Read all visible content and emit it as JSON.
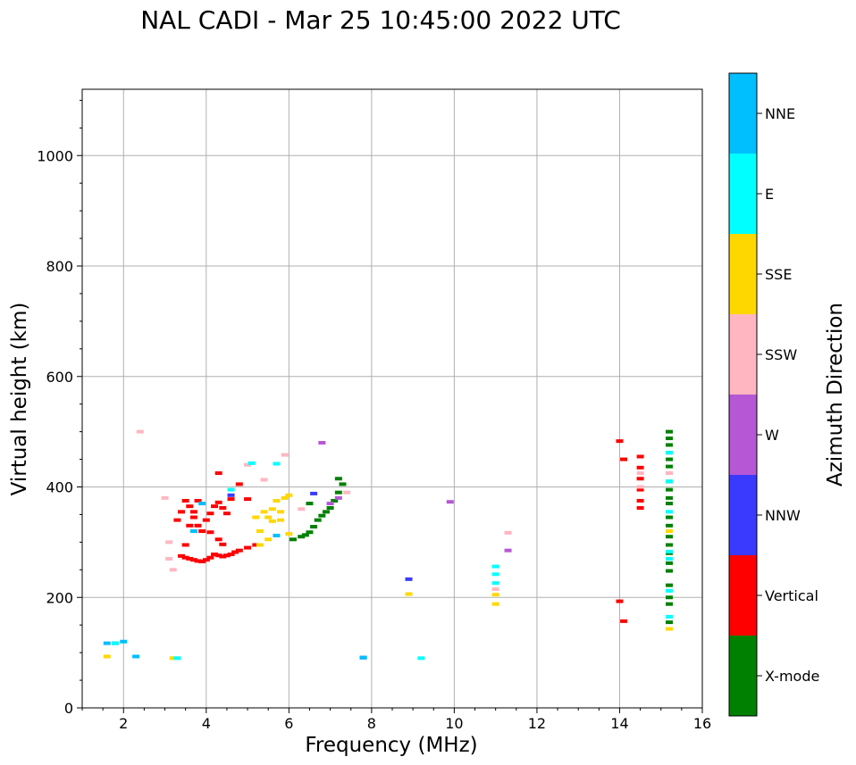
{
  "chart_data": {
    "type": "scatter",
    "title": "NAL CADI - Mar 25 10:45:00 2022 UTC",
    "xlabel": "Frequency (MHz)",
    "ylabel": "Virtual height (km)",
    "xlim": [
      1,
      16
    ],
    "ylim": [
      0,
      1120
    ],
    "xticks": [
      2,
      4,
      6,
      8,
      10,
      12,
      14,
      16
    ],
    "yticks": [
      0,
      200,
      400,
      600,
      800,
      1000
    ],
    "grid": true,
    "colorbar": {
      "label": "Azimuth Direction",
      "categories": [
        {
          "name": "X-mode",
          "color": "#008000"
        },
        {
          "name": "Vertical",
          "color": "#ff0000"
        },
        {
          "name": "NNW",
          "color": "#3a3aff"
        },
        {
          "name": "W",
          "color": "#b657d6"
        },
        {
          "name": "SSW",
          "color": "#ffb6c1"
        },
        {
          "name": "SSE",
          "color": "#ffd700"
        },
        {
          "name": "E",
          "color": "#00ffff"
        },
        {
          "name": "NNE",
          "color": "#00bfff"
        }
      ]
    },
    "series": [
      {
        "name": "X-mode",
        "color": "#008000",
        "points": [
          [
            6.1,
            305
          ],
          [
            6.3,
            310
          ],
          [
            6.4,
            313
          ],
          [
            6.5,
            318
          ],
          [
            6.6,
            328
          ],
          [
            6.7,
            340
          ],
          [
            6.8,
            348
          ],
          [
            6.9,
            355
          ],
          [
            7.0,
            362
          ],
          [
            7.1,
            375
          ],
          [
            7.2,
            390
          ],
          [
            7.3,
            405
          ],
          [
            7.2,
            415
          ],
          [
            6.5,
            370
          ],
          [
            15.2,
            500
          ],
          [
            15.2,
            488
          ],
          [
            15.2,
            476
          ],
          [
            15.2,
            462
          ],
          [
            15.2,
            450
          ],
          [
            15.2,
            437
          ],
          [
            15.2,
            425
          ],
          [
            15.2,
            410
          ],
          [
            15.2,
            395
          ],
          [
            15.2,
            380
          ],
          [
            15.2,
            370
          ],
          [
            15.2,
            345
          ],
          [
            15.2,
            330
          ],
          [
            15.2,
            310
          ],
          [
            15.2,
            295
          ],
          [
            15.2,
            280
          ],
          [
            15.2,
            262
          ],
          [
            15.2,
            248
          ],
          [
            15.2,
            222
          ],
          [
            15.2,
            200
          ],
          [
            15.2,
            188
          ],
          [
            15.2,
            155
          ]
        ]
      },
      {
        "name": "Vertical",
        "color": "#ff0000",
        "points": [
          [
            3.3,
            340
          ],
          [
            3.4,
            355
          ],
          [
            3.5,
            375
          ],
          [
            3.6,
            365
          ],
          [
            3.7,
            345
          ],
          [
            3.8,
            330
          ],
          [
            3.9,
            320
          ],
          [
            3.6,
            330
          ],
          [
            3.7,
            355
          ],
          [
            3.8,
            375
          ],
          [
            4.0,
            340
          ],
          [
            4.1,
            352
          ],
          [
            4.2,
            365
          ],
          [
            4.3,
            372
          ],
          [
            4.4,
            362
          ],
          [
            4.5,
            352
          ],
          [
            4.6,
            378
          ],
          [
            4.8,
            405
          ],
          [
            5.0,
            378
          ],
          [
            4.3,
            425
          ],
          [
            3.4,
            275
          ],
          [
            3.5,
            272
          ],
          [
            3.6,
            270
          ],
          [
            3.7,
            268
          ],
          [
            3.8,
            266
          ],
          [
            3.9,
            265
          ],
          [
            4.0,
            268
          ],
          [
            4.1,
            272
          ],
          [
            4.2,
            278
          ],
          [
            4.3,
            276
          ],
          [
            4.4,
            274
          ],
          [
            4.5,
            276
          ],
          [
            4.6,
            278
          ],
          [
            4.7,
            282
          ],
          [
            4.8,
            285
          ],
          [
            5.0,
            290
          ],
          [
            5.2,
            295
          ],
          [
            3.5,
            295
          ],
          [
            4.4,
            296
          ],
          [
            4.3,
            305
          ],
          [
            4.1,
            318
          ],
          [
            14.0,
            483
          ],
          [
            14.1,
            450
          ],
          [
            14.0,
            193
          ],
          [
            14.1,
            157
          ],
          [
            14.5,
            455
          ],
          [
            14.5,
            435
          ],
          [
            14.5,
            415
          ],
          [
            14.5,
            395
          ],
          [
            14.5,
            375
          ],
          [
            14.5,
            362
          ]
        ]
      },
      {
        "name": "NNW",
        "color": "#3a3aff",
        "points": [
          [
            4.6,
            385
          ],
          [
            6.6,
            388
          ],
          [
            8.9,
            233
          ],
          [
            7.8,
            91
          ],
          [
            1.8,
            117
          ]
        ]
      },
      {
        "name": "W",
        "color": "#b657d6",
        "points": [
          [
            6.8,
            480
          ],
          [
            7.0,
            370
          ],
          [
            7.2,
            380
          ],
          [
            9.9,
            373
          ],
          [
            11.3,
            285
          ]
        ]
      },
      {
        "name": "SSW",
        "color": "#ffb6c1",
        "points": [
          [
            2.4,
            500
          ],
          [
            3.0,
            380
          ],
          [
            3.1,
            300
          ],
          [
            3.1,
            270
          ],
          [
            3.2,
            250
          ],
          [
            5.0,
            440
          ],
          [
            5.4,
            413
          ],
          [
            5.9,
            458
          ],
          [
            6.3,
            360
          ],
          [
            7.4,
            390
          ],
          [
            11.0,
            215
          ],
          [
            11.3,
            317
          ],
          [
            14.5,
            425
          ],
          [
            14.5,
            400
          ],
          [
            15.2,
            425
          ]
        ]
      },
      {
        "name": "SSE",
        "color": "#ffd700",
        "points": [
          [
            5.2,
            345
          ],
          [
            5.4,
            355
          ],
          [
            5.5,
            345
          ],
          [
            5.6,
            360
          ],
          [
            5.7,
            375
          ],
          [
            5.8,
            355
          ],
          [
            5.9,
            380
          ],
          [
            6.0,
            385
          ],
          [
            5.3,
            320
          ],
          [
            5.6,
            338
          ],
          [
            5.8,
            340
          ],
          [
            5.3,
            295
          ],
          [
            5.5,
            305
          ],
          [
            6.0,
            315
          ],
          [
            8.9,
            206
          ],
          [
            11.0,
            188
          ],
          [
            11.0,
            205
          ],
          [
            15.2,
            320
          ],
          [
            15.2,
            143
          ],
          [
            1.6,
            93
          ],
          [
            3.2,
            90
          ]
        ]
      },
      {
        "name": "E",
        "color": "#00ffff",
        "points": [
          [
            5.1,
            443
          ],
          [
            5.7,
            442
          ],
          [
            4.6,
            395
          ],
          [
            11.0,
            256
          ],
          [
            11.0,
            242
          ],
          [
            11.0,
            226
          ],
          [
            15.2,
            462
          ],
          [
            15.2,
            410
          ],
          [
            15.2,
            355
          ],
          [
            15.2,
            283
          ],
          [
            15.2,
            270
          ],
          [
            15.2,
            212
          ],
          [
            15.2,
            165
          ],
          [
            9.2,
            90
          ],
          [
            3.3,
            90
          ],
          [
            1.8,
            117
          ]
        ]
      },
      {
        "name": "NNE",
        "color": "#00bfff",
        "points": [
          [
            3.7,
            320
          ],
          [
            3.9,
            370
          ],
          [
            5.7,
            312
          ],
          [
            7.8,
            91
          ],
          [
            2.3,
            93
          ],
          [
            1.6,
            117
          ],
          [
            2.0,
            120
          ]
        ]
      }
    ]
  }
}
